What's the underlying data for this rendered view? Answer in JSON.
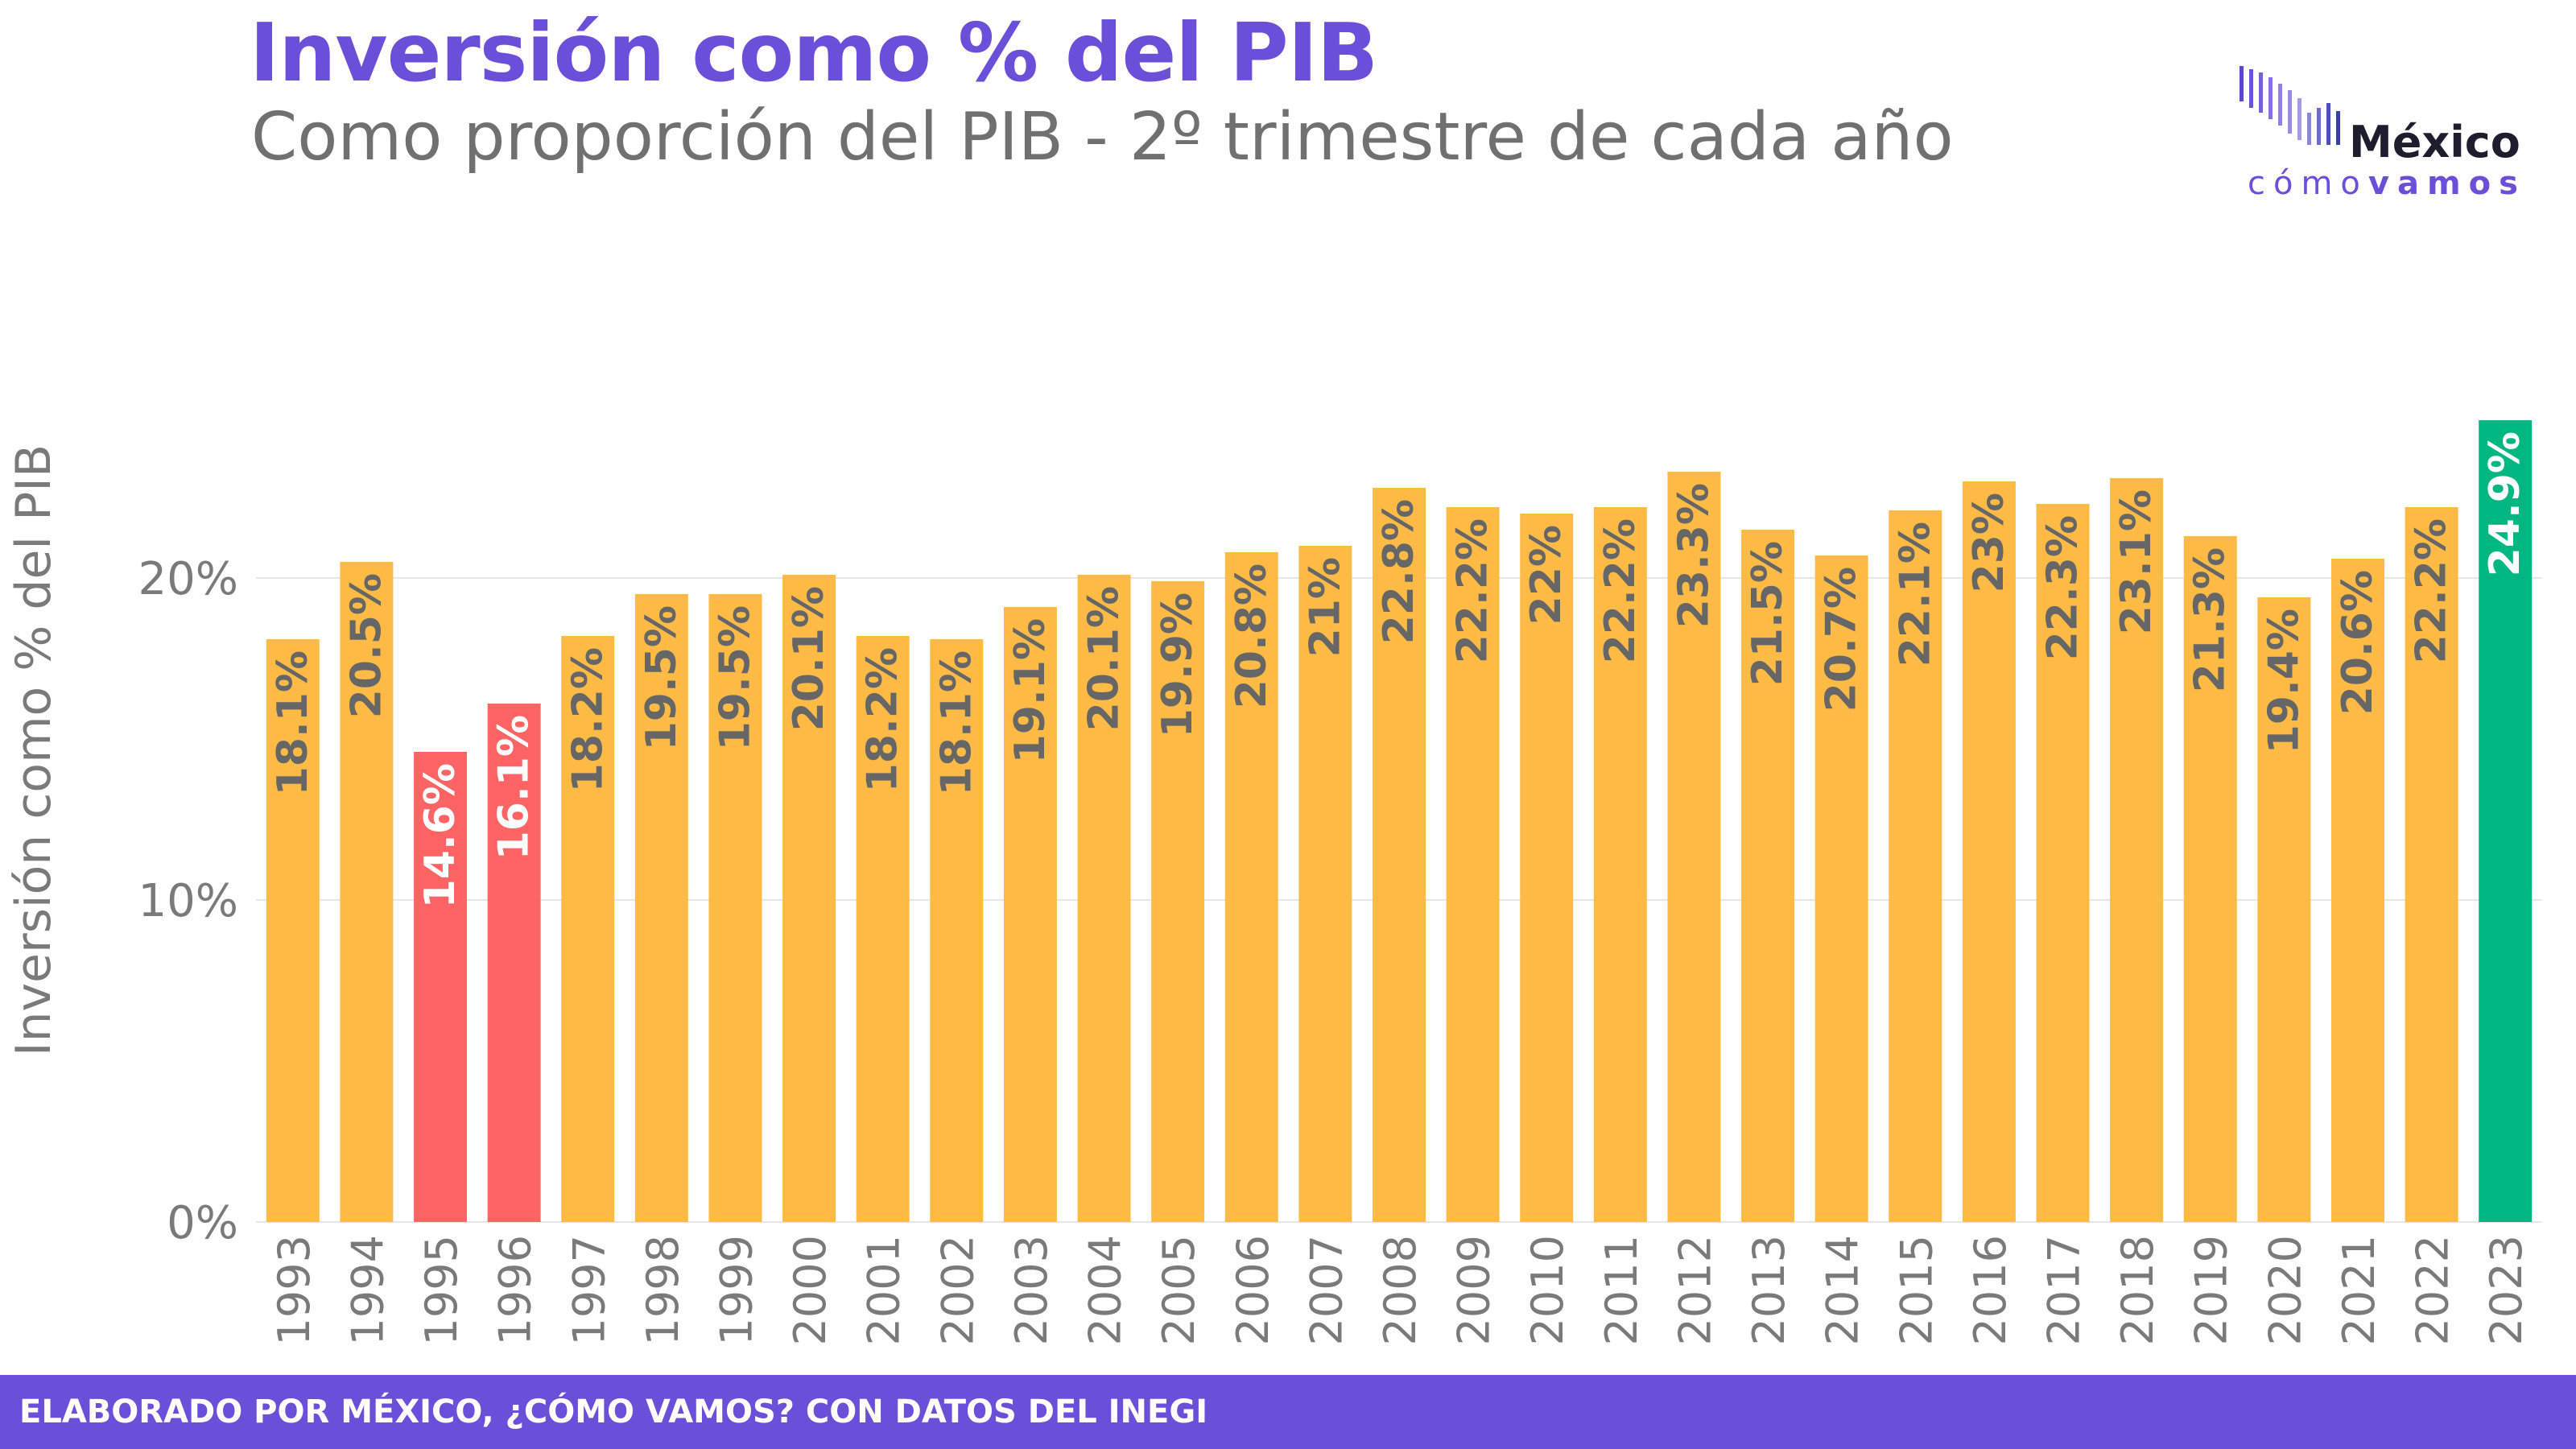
{
  "header": {
    "title": "Inversión como % del PIB",
    "subtitle": "Como proporción del PIB - 2º trimestre de cada año"
  },
  "logo": {
    "name": "México",
    "tagline_light": "cómo",
    "tagline_bold": "vamos"
  },
  "footer": {
    "source": "ELABORADO POR MÉXICO, ¿CÓMO VAMOS? CON DATOS DEL INEGI"
  },
  "colors": {
    "default_bar": "#FDBA45",
    "crisis_bar": "#FF6464",
    "latest_bar": "#00B782",
    "brand": "#6A4FD8",
    "label_dark": "#666666",
    "label_light": "#FFFFFF"
  },
  "chart_data": {
    "type": "bar",
    "title": "Inversión como % del PIB",
    "subtitle": "Como proporción del PIB - 2º trimestre de cada año",
    "xlabel": "",
    "ylabel": "Inversión como % del PIB",
    "ylim": [
      0,
      25
    ],
    "yticks": [
      0,
      10,
      20
    ],
    "ytick_labels": [
      "0%",
      "10%",
      "20%"
    ],
    "grid": "horizontal",
    "categories": [
      "1993",
      "1994",
      "1995",
      "1996",
      "1997",
      "1998",
      "1999",
      "2000",
      "2001",
      "2002",
      "2003",
      "2004",
      "2005",
      "2006",
      "2007",
      "2008",
      "2009",
      "2010",
      "2011",
      "2012",
      "2013",
      "2014",
      "2015",
      "2016",
      "2017",
      "2018",
      "2019",
      "2020",
      "2021",
      "2022",
      "2023"
    ],
    "values": [
      18.1,
      20.5,
      14.6,
      16.1,
      18.2,
      19.5,
      19.5,
      20.1,
      18.2,
      18.1,
      19.1,
      20.1,
      19.9,
      20.8,
      21.0,
      22.8,
      22.2,
      22.0,
      22.2,
      23.3,
      21.5,
      20.7,
      22.1,
      23.0,
      22.3,
      23.1,
      21.3,
      19.4,
      20.6,
      22.2,
      24.9
    ],
    "data_labels": [
      "18.1%",
      "20.5%",
      "14.6%",
      "16.1%",
      "18.2%",
      "19.5%",
      "19.5%",
      "20.1%",
      "18.2%",
      "18.1%",
      "19.1%",
      "20.1%",
      "19.9%",
      "20.8%",
      "21%",
      "22.8%",
      "22.2%",
      "22%",
      "22.2%",
      "23.3%",
      "21.5%",
      "20.7%",
      "22.1%",
      "23%",
      "22.3%",
      "23.1%",
      "21.3%",
      "19.4%",
      "20.6%",
      "22.2%",
      "24.9%"
    ],
    "highlight": {
      "crisis": [
        "1995",
        "1996"
      ],
      "latest": [
        "2023"
      ]
    }
  }
}
